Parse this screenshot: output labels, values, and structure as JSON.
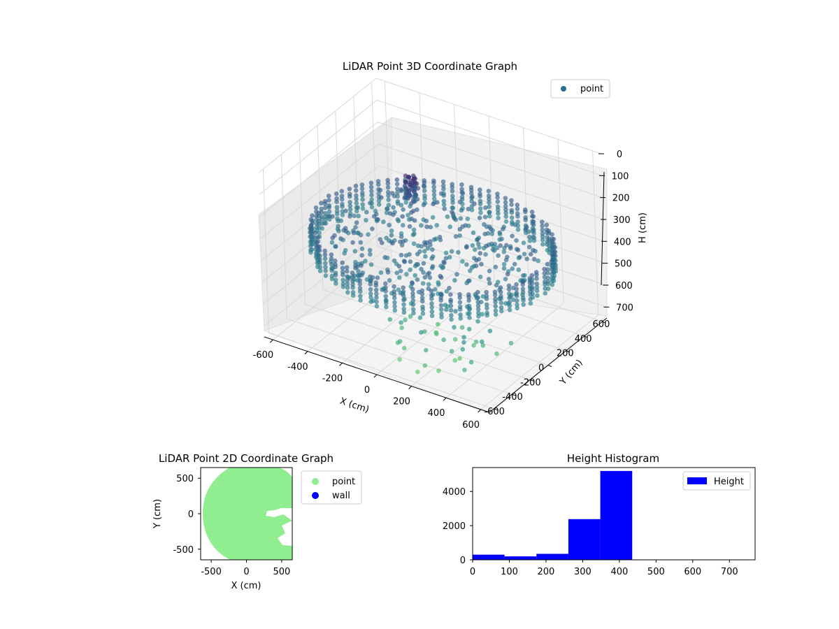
{
  "chart_data": [
    {
      "type": "scatter",
      "title": "LiDAR Point 3D Coordinate Graph",
      "xlabel": "X (cm)",
      "ylabel": "Y (cm)",
      "zlabel": "H (cm)",
      "x_ticks": [
        "-600",
        "-400",
        "-200",
        "0",
        "200",
        "400",
        "600"
      ],
      "y_ticks": [
        "-600",
        "-400",
        "-200",
        "0",
        "200",
        "400",
        "600"
      ],
      "z_ticks": [
        "0",
        "100",
        "200",
        "300",
        "400",
        "500",
        "600",
        "700"
      ],
      "xlim": [
        -650,
        650
      ],
      "ylim": [
        -650,
        650
      ],
      "zlim": [
        0,
        750
      ],
      "z_inverted": true,
      "colormap": "viridis",
      "legend": {
        "position": "top-right",
        "entries": [
          {
            "name": "point",
            "color": "#2a6e8e"
          }
        ]
      },
      "series": [
        {
          "name": "point",
          "description_of_shape": "ring of points at radius ~550-650 cm plus inner scattered points"
        }
      ],
      "grid": true
    },
    {
      "type": "scatter",
      "title": "LiDAR Point 2D Coordinate Graph",
      "xlabel": "X (cm)",
      "ylabel": "Y (cm)",
      "x_ticks": [
        "-500",
        "0",
        "500"
      ],
      "y_ticks": [
        "-500",
        "0",
        "500"
      ],
      "xlim": [
        -650,
        650
      ],
      "ylim": [
        -650,
        650
      ],
      "legend": {
        "position": "outside-right",
        "entries": [
          {
            "name": "point",
            "color": "#90ee90"
          },
          {
            "name": "wall",
            "color": "#0000ff"
          }
        ]
      },
      "grid": false
    },
    {
      "type": "bar",
      "title": "Height Histogram",
      "x_ticks": [
        "0",
        "100",
        "200",
        "300",
        "400",
        "500",
        "600",
        "700"
      ],
      "y_ticks": [
        "0",
        "2000",
        "4000"
      ],
      "xlim": [
        0,
        770
      ],
      "ylim": [
        0,
        5400
      ],
      "bins": [
        {
          "x0": 0,
          "x1": 87,
          "value": 300
        },
        {
          "x0": 87,
          "x1": 174,
          "value": 200
        },
        {
          "x0": 174,
          "x1": 261,
          "value": 350
        },
        {
          "x0": 261,
          "x1": 348,
          "value": 2380
        },
        {
          "x0": 348,
          "x1": 435,
          "value": 5200
        }
      ],
      "color": "#0000ff",
      "legend": {
        "position": "top-right",
        "entries": [
          {
            "name": "Height",
            "color": "#0000ff"
          }
        ]
      },
      "grid": false
    }
  ]
}
